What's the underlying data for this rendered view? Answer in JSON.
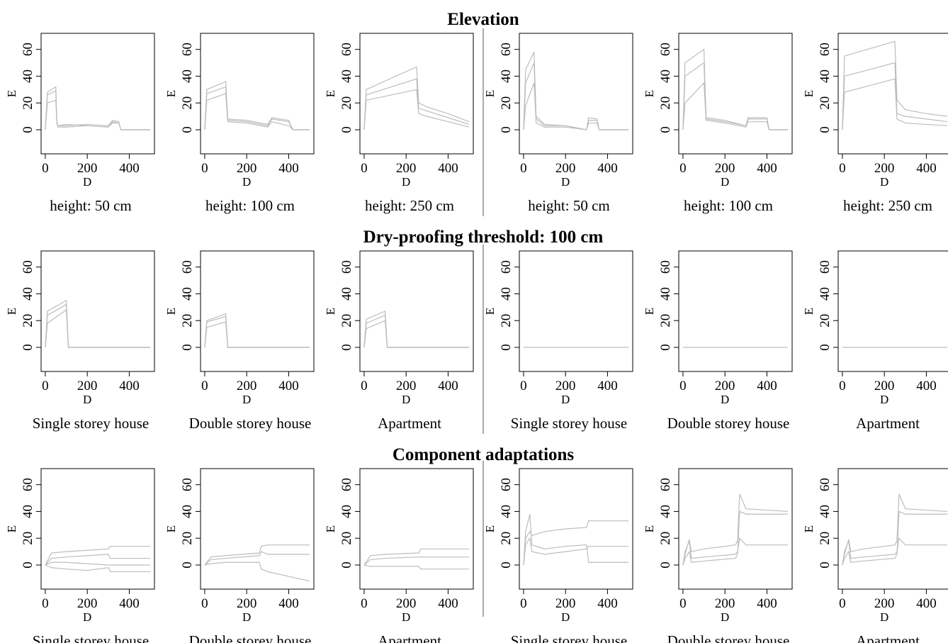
{
  "sections": [
    "Elevation",
    "Dry-proofing  threshold: 100 cm",
    "Component adaptations"
  ],
  "chart_data": [
    {
      "type": "line",
      "caption": "height: 50 cm",
      "xlabel": "D",
      "ylabel": "E",
      "color": "#bdbdbd",
      "xlim": [
        -20,
        520
      ],
      "ylim": [
        -18,
        72
      ],
      "xticks": [
        0,
        200,
        400
      ],
      "yticks": [
        0,
        20,
        40,
        60
      ],
      "x": [
        0,
        10,
        50,
        55,
        60,
        100,
        200,
        300,
        320,
        350,
        360,
        500
      ],
      "series": [
        {
          "values": [
            0,
            20,
            22,
            5,
            2,
            2,
            3,
            2,
            5,
            5,
            0,
            0
          ]
        },
        {
          "values": [
            0,
            26,
            29,
            5,
            3,
            3,
            4,
            3,
            7,
            6,
            0,
            0
          ]
        },
        {
          "values": [
            0,
            28,
            32,
            6,
            3,
            4,
            3,
            2,
            6,
            5,
            0,
            0
          ]
        }
      ]
    },
    {
      "type": "line",
      "caption": "height: 100 cm",
      "xlabel": "D",
      "ylabel": "E",
      "color": "#bdbdbd",
      "xlim": [
        -20,
        520
      ],
      "ylim": [
        -18,
        72
      ],
      "xticks": [
        0,
        200,
        400
      ],
      "yticks": [
        0,
        20,
        40,
        60
      ],
      "x": [
        0,
        10,
        100,
        110,
        200,
        300,
        320,
        400,
        420,
        500
      ],
      "series": [
        {
          "values": [
            0,
            22,
            27,
            6,
            5,
            2,
            6,
            3,
            0,
            0
          ]
        },
        {
          "values": [
            0,
            27,
            32,
            7,
            6,
            3,
            8,
            6,
            0,
            0
          ]
        },
        {
          "values": [
            0,
            30,
            36,
            8,
            7,
            4,
            9,
            7,
            0,
            0
          ]
        }
      ]
    },
    {
      "type": "line",
      "caption": "height: 250 cm",
      "xlabel": "D",
      "ylabel": "E",
      "color": "#bdbdbd",
      "xlim": [
        -20,
        520
      ],
      "ylim": [
        -18,
        72
      ],
      "xticks": [
        0,
        200,
        400
      ],
      "yticks": [
        0,
        20,
        40,
        60
      ],
      "x": [
        0,
        10,
        250,
        260,
        300,
        400,
        500
      ],
      "series": [
        {
          "values": [
            0,
            22,
            30,
            12,
            10,
            6,
            2
          ]
        },
        {
          "values": [
            0,
            26,
            38,
            16,
            14,
            9,
            4
          ]
        },
        {
          "values": [
            0,
            30,
            47,
            20,
            17,
            12,
            6
          ]
        }
      ]
    },
    {
      "type": "line",
      "caption": "height: 50 cm",
      "xlabel": "D",
      "ylabel": "E",
      "color": "#bdbdbd",
      "xlim": [
        -20,
        520
      ],
      "ylim": [
        -18,
        72
      ],
      "xticks": [
        0,
        200,
        400
      ],
      "yticks": [
        0,
        20,
        40,
        60
      ],
      "x": [
        0,
        10,
        50,
        60,
        100,
        200,
        300,
        310,
        350,
        360,
        500
      ],
      "series": [
        {
          "values": [
            0,
            18,
            35,
            5,
            2,
            2,
            0,
            5,
            5,
            0,
            0
          ]
        },
        {
          "values": [
            0,
            35,
            50,
            8,
            3,
            3,
            0,
            7,
            7,
            0,
            0
          ]
        },
        {
          "values": [
            0,
            45,
            58,
            10,
            4,
            3,
            0,
            9,
            8,
            0,
            0
          ]
        }
      ]
    },
    {
      "type": "line",
      "caption": "height: 100 cm",
      "xlabel": "D",
      "ylabel": "E",
      "color": "#bdbdbd",
      "xlim": [
        -20,
        520
      ],
      "ylim": [
        -18,
        72
      ],
      "xticks": [
        0,
        200,
        400
      ],
      "yticks": [
        0,
        20,
        40,
        60
      ],
      "x": [
        0,
        10,
        100,
        110,
        200,
        300,
        310,
        400,
        410,
        500
      ],
      "series": [
        {
          "values": [
            0,
            20,
            35,
            7,
            5,
            2,
            6,
            6,
            0,
            0
          ]
        },
        {
          "values": [
            0,
            40,
            50,
            8,
            6,
            3,
            8,
            8,
            0,
            0
          ]
        },
        {
          "values": [
            0,
            50,
            60,
            9,
            7,
            3,
            9,
            9,
            0,
            0
          ]
        }
      ]
    },
    {
      "type": "line",
      "caption": "height: 250 cm",
      "xlabel": "D",
      "ylabel": "E",
      "color": "#bdbdbd",
      "xlim": [
        -20,
        520
      ],
      "ylim": [
        -18,
        72
      ],
      "xticks": [
        0,
        200,
        400
      ],
      "yticks": [
        0,
        20,
        40,
        60
      ],
      "x": [
        0,
        10,
        250,
        260,
        300,
        400,
        500
      ],
      "series": [
        {
          "values": [
            0,
            28,
            38,
            8,
            5,
            4,
            3
          ]
        },
        {
          "values": [
            0,
            40,
            50,
            12,
            10,
            8,
            6
          ]
        },
        {
          "values": [
            0,
            55,
            66,
            22,
            15,
            12,
            10
          ]
        }
      ]
    },
    {
      "type": "line",
      "caption": "Single storey house",
      "xlabel": "D",
      "ylabel": "E",
      "color": "#bdbdbd",
      "xlim": [
        -20,
        520
      ],
      "ylim": [
        -18,
        72
      ],
      "xticks": [
        0,
        200,
        400
      ],
      "yticks": [
        0,
        20,
        40,
        60
      ],
      "x": [
        0,
        10,
        100,
        110,
        500
      ],
      "series": [
        {
          "values": [
            0,
            18,
            28,
            0,
            0
          ]
        },
        {
          "values": [
            0,
            24,
            32,
            0,
            0
          ]
        },
        {
          "values": [
            0,
            27,
            35,
            0,
            0
          ]
        }
      ]
    },
    {
      "type": "line",
      "caption": "Double storey house",
      "xlabel": "D",
      "ylabel": "E",
      "color": "#bdbdbd",
      "xlim": [
        -20,
        520
      ],
      "ylim": [
        -18,
        72
      ],
      "xticks": [
        0,
        200,
        400
      ],
      "yticks": [
        0,
        20,
        40,
        60
      ],
      "x": [
        0,
        10,
        100,
        110,
        500
      ],
      "series": [
        {
          "values": [
            0,
            15,
            19,
            0,
            0
          ]
        },
        {
          "values": [
            0,
            19,
            23,
            0,
            0
          ]
        },
        {
          "values": [
            0,
            20,
            25,
            0,
            0
          ]
        }
      ]
    },
    {
      "type": "line",
      "caption": "Apartment",
      "xlabel": "D",
      "ylabel": "E",
      "color": "#bdbdbd",
      "xlim": [
        -20,
        520
      ],
      "ylim": [
        -18,
        72
      ],
      "xticks": [
        0,
        200,
        400
      ],
      "yticks": [
        0,
        20,
        40,
        60
      ],
      "x": [
        0,
        10,
        100,
        110,
        500
      ],
      "series": [
        {
          "values": [
            0,
            14,
            20,
            0,
            0
          ]
        },
        {
          "values": [
            0,
            18,
            24,
            0,
            0
          ]
        },
        {
          "values": [
            0,
            21,
            27,
            0,
            0
          ]
        }
      ]
    },
    {
      "type": "line",
      "caption": "Single storey house",
      "xlabel": "D",
      "ylabel": "E",
      "color": "#bdbdbd",
      "xlim": [
        -20,
        520
      ],
      "ylim": [
        -18,
        72
      ],
      "xticks": [
        0,
        200,
        400
      ],
      "yticks": [
        0,
        20,
        40,
        60
      ],
      "x": [
        0,
        500
      ],
      "series": [
        {
          "values": [
            0,
            0
          ]
        }
      ]
    },
    {
      "type": "line",
      "caption": "Double storey house",
      "xlabel": "D",
      "ylabel": "E",
      "color": "#bdbdbd",
      "xlim": [
        -20,
        520
      ],
      "ylim": [
        -18,
        72
      ],
      "xticks": [
        0,
        200,
        400
      ],
      "yticks": [
        0,
        20,
        40,
        60
      ],
      "x": [
        0,
        500
      ],
      "series": [
        {
          "values": [
            0,
            0
          ]
        }
      ]
    },
    {
      "type": "line",
      "caption": "Apartment",
      "xlabel": "D",
      "ylabel": "E",
      "color": "#bdbdbd",
      "xlim": [
        -20,
        520
      ],
      "ylim": [
        -18,
        72
      ],
      "xticks": [
        0,
        200,
        400
      ],
      "yticks": [
        0,
        20,
        40,
        60
      ],
      "x": [
        0,
        500
      ],
      "series": [
        {
          "values": [
            0,
            0
          ]
        }
      ]
    },
    {
      "type": "line",
      "caption": "Single storey house",
      "xlabel": "D",
      "ylabel": "E",
      "color": "#bdbdbd",
      "xlim": [
        -20,
        520
      ],
      "ylim": [
        -18,
        72
      ],
      "xticks": [
        0,
        200,
        400
      ],
      "yticks": [
        0,
        20,
        40,
        60
      ],
      "x": [
        0,
        30,
        100,
        200,
        300,
        310,
        500
      ],
      "series": [
        {
          "values": [
            0,
            -2,
            -3,
            -4,
            -2,
            -5,
            -5
          ]
        },
        {
          "values": [
            0,
            5,
            6,
            7,
            8,
            5,
            5
          ]
        },
        {
          "values": [
            0,
            9,
            10,
            11,
            12,
            14,
            14
          ]
        },
        {
          "values": [
            0,
            2,
            2,
            1,
            0,
            0,
            0
          ]
        }
      ]
    },
    {
      "type": "line",
      "caption": "Double storey house",
      "xlabel": "D",
      "ylabel": "E",
      "color": "#bdbdbd",
      "xlim": [
        -20,
        520
      ],
      "ylim": [
        -18,
        72
      ],
      "xticks": [
        0,
        200,
        400
      ],
      "yticks": [
        0,
        20,
        40,
        60
      ],
      "x": [
        0,
        30,
        100,
        260,
        270,
        300,
        500
      ],
      "series": [
        {
          "values": [
            0,
            1,
            2,
            2,
            -3,
            -5,
            -12
          ]
        },
        {
          "values": [
            0,
            4,
            5,
            7,
            10,
            8,
            8
          ]
        },
        {
          "values": [
            0,
            6,
            7,
            9,
            14,
            15,
            15
          ]
        }
      ]
    },
    {
      "type": "line",
      "caption": "Apartment",
      "xlabel": "D",
      "ylabel": "E",
      "color": "#bdbdbd",
      "xlim": [
        -20,
        520
      ],
      "ylim": [
        -18,
        72
      ],
      "xticks": [
        0,
        200,
        400
      ],
      "yticks": [
        0,
        20,
        40,
        60
      ],
      "x": [
        0,
        30,
        100,
        260,
        270,
        500
      ],
      "series": [
        {
          "values": [
            0,
            -1,
            -1,
            -1,
            -3,
            -3
          ]
        },
        {
          "values": [
            0,
            4,
            5,
            6,
            6,
            6
          ]
        },
        {
          "values": [
            0,
            7,
            8,
            9,
            12,
            12
          ]
        }
      ]
    },
    {
      "type": "line",
      "caption": "Single storey house",
      "xlabel": "D",
      "ylabel": "E",
      "color": "#bdbdbd",
      "xlim": [
        -20,
        520
      ],
      "ylim": [
        -18,
        72
      ],
      "xticks": [
        0,
        200,
        400
      ],
      "yticks": [
        0,
        20,
        40,
        60
      ],
      "x": [
        0,
        10,
        30,
        40,
        100,
        200,
        300,
        310,
        500
      ],
      "series": [
        {
          "values": [
            0,
            25,
            38,
            15,
            12,
            14,
            15,
            2,
            2
          ]
        },
        {
          "values": [
            0,
            15,
            20,
            10,
            8,
            10,
            12,
            14,
            14
          ]
        },
        {
          "values": [
            0,
            20,
            25,
            22,
            25,
            27,
            28,
            33,
            33
          ]
        }
      ]
    },
    {
      "type": "line",
      "caption": "Double storey house",
      "xlabel": "D",
      "ylabel": "E",
      "color": "#bdbdbd",
      "xlim": [
        -20,
        520
      ],
      "ylim": [
        -18,
        72
      ],
      "xticks": [
        0,
        200,
        400
      ],
      "yticks": [
        0,
        20,
        40,
        60
      ],
      "x": [
        0,
        10,
        30,
        40,
        100,
        250,
        260,
        270,
        300,
        500
      ],
      "series": [
        {
          "values": [
            0,
            10,
            18,
            5,
            6,
            8,
            10,
            20,
            15,
            15
          ]
        },
        {
          "values": [
            0,
            5,
            10,
            2,
            3,
            5,
            8,
            40,
            38,
            38
          ]
        },
        {
          "values": [
            0,
            8,
            19,
            10,
            12,
            15,
            18,
            53,
            42,
            40
          ]
        }
      ]
    },
    {
      "type": "line",
      "caption": "Apartment",
      "xlabel": "D",
      "ylabel": "E",
      "color": "#bdbdbd",
      "xlim": [
        -20,
        520
      ],
      "ylim": [
        -18,
        72
      ],
      "xticks": [
        0,
        200,
        400
      ],
      "yticks": [
        0,
        20,
        40,
        60
      ],
      "x": [
        0,
        10,
        30,
        40,
        100,
        250,
        260,
        270,
        300,
        500
      ],
      "series": [
        {
          "values": [
            0,
            10,
            18,
            5,
            6,
            8,
            10,
            20,
            15,
            15
          ]
        },
        {
          "values": [
            0,
            5,
            10,
            2,
            3,
            5,
            8,
            40,
            38,
            38
          ]
        },
        {
          "values": [
            0,
            8,
            19,
            10,
            12,
            15,
            18,
            53,
            42,
            40
          ]
        }
      ]
    }
  ]
}
